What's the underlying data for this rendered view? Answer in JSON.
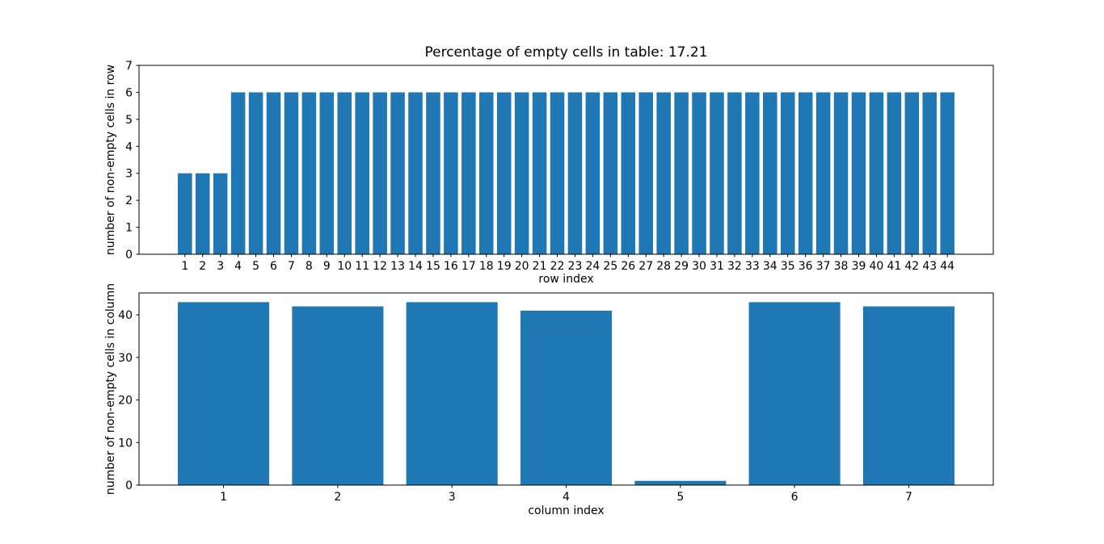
{
  "figure": {
    "background": "#ffffff",
    "bar_color": "#1f77b4",
    "spine_color": "#000000",
    "text_color": "#000000"
  },
  "chart_data": [
    {
      "type": "bar",
      "title": "Percentage of empty cells in table: 17.21",
      "xlabel": "row index",
      "ylabel": "number of non-empty cells in row",
      "categories": [
        1,
        2,
        3,
        4,
        5,
        6,
        7,
        8,
        9,
        10,
        11,
        12,
        13,
        14,
        15,
        16,
        17,
        18,
        19,
        20,
        21,
        22,
        23,
        24,
        25,
        26,
        27,
        28,
        29,
        30,
        31,
        32,
        33,
        34,
        35,
        36,
        37,
        38,
        39,
        40,
        41,
        42,
        43,
        44
      ],
      "values": [
        3,
        3,
        3,
        6,
        6,
        6,
        6,
        6,
        6,
        6,
        6,
        6,
        6,
        6,
        6,
        6,
        6,
        6,
        6,
        6,
        6,
        6,
        6,
        6,
        6,
        6,
        6,
        6,
        6,
        6,
        6,
        6,
        6,
        6,
        6,
        6,
        6,
        6,
        6,
        6,
        6,
        6,
        6,
        6
      ],
      "xlim": [
        -1.59,
        46.59
      ],
      "ylim": [
        0,
        7
      ],
      "yticks": [
        0,
        1,
        2,
        3,
        4,
        5,
        6,
        7
      ],
      "bar_width": 0.8,
      "grid": false,
      "legend": null
    },
    {
      "type": "bar",
      "title": "",
      "xlabel": "column index",
      "ylabel": "number of non-empty cells in column",
      "categories": [
        1,
        2,
        3,
        4,
        5,
        6,
        7
      ],
      "values": [
        43,
        42,
        43,
        41,
        1,
        43,
        42
      ],
      "xlim": [
        0.26,
        7.74
      ],
      "ylim": [
        0,
        45.15
      ],
      "yticks": [
        0,
        10,
        20,
        30,
        40
      ],
      "bar_width": 0.8,
      "grid": false,
      "legend": null
    }
  ]
}
